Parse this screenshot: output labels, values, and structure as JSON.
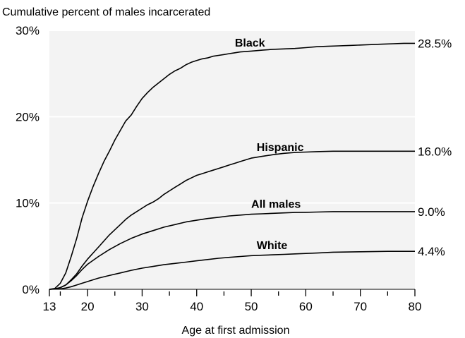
{
  "chart_data": {
    "type": "line",
    "title": "Cumulative percent of males incarcerated",
    "xlabel": "Age at first admission",
    "ylabel": "",
    "xlim": [
      13,
      80
    ],
    "ylim": [
      0,
      30
    ],
    "x_major_ticks": [
      13,
      20,
      30,
      40,
      50,
      60,
      70,
      80
    ],
    "x_minor_ticks": [
      15,
      25,
      35,
      45,
      55,
      65,
      75
    ],
    "y_ticks": [
      0,
      10,
      20,
      30
    ],
    "y_tick_labels": [
      "0%",
      "10%",
      "20%",
      "30%"
    ],
    "grid": "horizontal",
    "plot_background": "#f3f3f3",
    "series": [
      {
        "name": "Black",
        "end_label": "28.5%",
        "x": [
          13,
          14,
          15,
          16,
          17,
          18,
          19,
          20,
          21,
          22,
          23,
          24,
          25,
          26,
          27,
          28,
          29,
          30,
          31,
          32,
          33,
          34,
          35,
          36,
          37,
          38,
          39,
          40,
          41,
          42,
          43,
          44,
          45,
          46,
          47,
          48,
          50,
          52,
          54,
          56,
          58,
          60,
          62,
          64,
          66,
          68,
          70,
          72,
          74,
          76,
          78,
          80
        ],
        "values": [
          0,
          0.1,
          0.7,
          1.9,
          3.8,
          5.9,
          8.3,
          10.2,
          11.9,
          13.4,
          14.8,
          16.0,
          17.3,
          18.4,
          19.5,
          20.2,
          21.2,
          22.1,
          22.8,
          23.4,
          23.9,
          24.4,
          24.9,
          25.3,
          25.6,
          26.0,
          26.3,
          26.5,
          26.7,
          26.8,
          27.0,
          27.1,
          27.2,
          27.3,
          27.4,
          27.5,
          27.6,
          27.7,
          27.8,
          27.85,
          27.9,
          28.0,
          28.1,
          28.15,
          28.2,
          28.25,
          28.3,
          28.35,
          28.4,
          28.45,
          28.5,
          28.5
        ]
      },
      {
        "name": "Hispanic",
        "end_label": "16.0%",
        "x": [
          13,
          14,
          15,
          16,
          17,
          18,
          19,
          20,
          21,
          22,
          23,
          24,
          25,
          26,
          27,
          28,
          29,
          30,
          31,
          32,
          33,
          34,
          35,
          36,
          37,
          38,
          39,
          40,
          41,
          42,
          43,
          44,
          45,
          46,
          47,
          48,
          49,
          50,
          52,
          54,
          56,
          58,
          60,
          62,
          65,
          70,
          75,
          80
        ],
        "values": [
          0,
          0.05,
          0.2,
          0.5,
          1.1,
          1.8,
          2.7,
          3.5,
          4.2,
          4.9,
          5.6,
          6.3,
          6.9,
          7.5,
          8.1,
          8.6,
          9.0,
          9.4,
          9.8,
          10.1,
          10.5,
          11.0,
          11.4,
          11.8,
          12.2,
          12.6,
          12.9,
          13.2,
          13.4,
          13.6,
          13.8,
          14.0,
          14.2,
          14.4,
          14.6,
          14.8,
          15.0,
          15.2,
          15.4,
          15.6,
          15.75,
          15.85,
          15.9,
          15.95,
          16.0,
          16.0,
          16.0,
          16.0
        ]
      },
      {
        "name": "All males",
        "end_label": "9.0%",
        "x": [
          13,
          14,
          15,
          16,
          17,
          18,
          19,
          20,
          22,
          24,
          26,
          28,
          30,
          32,
          34,
          36,
          38,
          40,
          42,
          44,
          46,
          48,
          50,
          52,
          54,
          56,
          58,
          60,
          62,
          65,
          70,
          75,
          80
        ],
        "values": [
          0,
          0.05,
          0.2,
          0.5,
          1.0,
          1.6,
          2.3,
          2.9,
          3.8,
          4.6,
          5.3,
          5.9,
          6.4,
          6.8,
          7.2,
          7.5,
          7.8,
          8.0,
          8.2,
          8.35,
          8.5,
          8.6,
          8.7,
          8.75,
          8.8,
          8.85,
          8.9,
          8.92,
          8.95,
          9.0,
          9.0,
          9.0,
          9.0
        ]
      },
      {
        "name": "White",
        "end_label": "4.4%",
        "x": [
          13,
          15,
          16,
          17,
          18,
          19,
          20,
          22,
          24,
          26,
          28,
          30,
          32,
          34,
          36,
          38,
          40,
          42,
          44,
          46,
          48,
          50,
          52,
          54,
          56,
          58,
          60,
          62,
          65,
          70,
          75,
          80
        ],
        "values": [
          0,
          0.05,
          0.15,
          0.3,
          0.5,
          0.7,
          0.9,
          1.3,
          1.6,
          1.9,
          2.2,
          2.45,
          2.65,
          2.85,
          3.0,
          3.15,
          3.3,
          3.45,
          3.6,
          3.7,
          3.8,
          3.9,
          3.95,
          4.0,
          4.05,
          4.1,
          4.15,
          4.2,
          4.3,
          4.35,
          4.4,
          4.4
        ]
      }
    ]
  }
}
